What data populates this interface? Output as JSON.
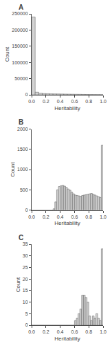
{
  "chart_data": [
    {
      "type": "histogram",
      "title": "A",
      "xlabel": "Heritability",
      "ylabel": "Count",
      "bins": [
        0,
        0.05,
        0.1,
        0.15,
        0.2,
        0.25,
        0.3,
        0.35,
        0.4,
        0.45,
        0.5,
        0.55,
        0.6,
        0.65,
        0.7,
        0.75,
        0.8,
        0.85,
        0.9,
        0.95,
        1.0
      ],
      "values": [
        240000,
        8000,
        5000,
        4000,
        3500,
        3000,
        2800,
        2600,
        2400,
        2200,
        2000,
        1800,
        1600,
        1400,
        1200,
        1000,
        900,
        800,
        700,
        600
      ],
      "color": "#d3d3d3",
      "xlim": [
        0,
        1.0
      ],
      "xticks": [
        {
          "value": 0.0,
          "label": "0.0"
        },
        0.2,
        0.4,
        0.6,
        0.8,
        {
          "value": 1.0,
          "label": "1.0"
        }
      ],
      "ylim": [
        0,
        250000
      ],
      "yticks": [
        0,
        50000,
        100000,
        150000,
        200000,
        250000
      ],
      "grid": false
    },
    {
      "type": "histogram",
      "title": "B",
      "xlabel": "Heritability",
      "ylabel": "Count",
      "bins": [
        0,
        0.025,
        0.05,
        0.075,
        0.1,
        0.125,
        0.15,
        0.175,
        0.2,
        0.225,
        0.25,
        0.275,
        0.3,
        0.325,
        0.35,
        0.375,
        0.4,
        0.425,
        0.45,
        0.475,
        0.5,
        0.525,
        0.55,
        0.575,
        0.6,
        0.625,
        0.65,
        0.675,
        0.7,
        0.725,
        0.75,
        0.775,
        0.8,
        0.825,
        0.85,
        0.875,
        0.9,
        0.925,
        0.95,
        0.975,
        1.0
      ],
      "values": [
        0,
        0,
        0,
        0,
        0,
        0,
        0,
        0,
        0,
        0,
        0,
        0,
        30,
        200,
        500,
        580,
        600,
        610,
        590,
        560,
        520,
        490,
        440,
        400,
        370,
        360,
        350,
        340,
        360,
        370,
        380,
        390,
        400,
        410,
        390,
        370,
        350,
        330,
        310,
        1600
      ],
      "color": "#d3d3d3",
      "xlim": [
        0,
        1.0
      ],
      "xticks": [
        {
          "value": 0.0,
          "label": "0.0"
        },
        0.2,
        0.4,
        0.6,
        0.8,
        {
          "value": 1.0,
          "label": "1.0"
        }
      ],
      "ylim": [
        0,
        2000
      ],
      "yticks": [
        0,
        500,
        1000,
        1500,
        2000
      ],
      "grid": false
    },
    {
      "type": "histogram",
      "title": "C",
      "xlabel": "Heritability",
      "ylabel": "Count",
      "bins": [
        0,
        0.025,
        0.05,
        0.075,
        0.1,
        0.125,
        0.15,
        0.175,
        0.2,
        0.225,
        0.25,
        0.275,
        0.3,
        0.325,
        0.35,
        0.375,
        0.4,
        0.425,
        0.45,
        0.475,
        0.5,
        0.525,
        0.55,
        0.575,
        0.6,
        0.625,
        0.65,
        0.675,
        0.7,
        0.725,
        0.75,
        0.775,
        0.8,
        0.825,
        0.85,
        0.875,
        0.9,
        0.925,
        0.95,
        0.975,
        1.0
      ],
      "values": [
        0,
        0,
        0,
        0,
        0,
        0,
        0,
        0,
        0,
        0,
        0,
        0,
        0,
        0,
        0,
        0,
        0,
        0,
        0,
        0,
        0,
        0,
        0,
        0,
        2,
        3,
        5,
        7,
        13,
        13,
        12,
        10,
        4,
        2,
        4,
        3,
        5,
        3,
        2,
        33
      ],
      "color": "#d3d3d3",
      "xlim": [
        0,
        1.0
      ],
      "xticks": [
        {
          "value": 0.0,
          "label": "0.0"
        },
        0.2,
        0.4,
        0.6,
        0.8,
        {
          "value": 1.0,
          "label": "1.0"
        }
      ],
      "ylim": [
        0,
        35
      ],
      "yticks": [
        0,
        5,
        10,
        15,
        20,
        25,
        30,
        35
      ],
      "grid": false
    }
  ]
}
